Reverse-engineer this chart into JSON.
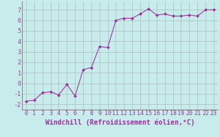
{
  "x": [
    0,
    1,
    2,
    3,
    4,
    5,
    6,
    7,
    8,
    9,
    10,
    11,
    12,
    13,
    14,
    15,
    16,
    17,
    18,
    19,
    20,
    21,
    22,
    23
  ],
  "y": [
    -1.7,
    -1.6,
    -0.9,
    -0.8,
    -1.1,
    -0.1,
    -1.2,
    1.3,
    1.5,
    3.5,
    3.4,
    6.0,
    6.2,
    6.2,
    6.6,
    7.1,
    6.5,
    6.6,
    6.4,
    6.4,
    6.5,
    6.4,
    7.0,
    7.0
  ],
  "xlim": [
    -0.5,
    23.5
  ],
  "ylim": [
    -2.5,
    7.8
  ],
  "yticks": [
    -2,
    -1,
    0,
    1,
    2,
    3,
    4,
    5,
    6,
    7
  ],
  "xticks": [
    0,
    1,
    2,
    3,
    4,
    5,
    6,
    7,
    8,
    9,
    10,
    11,
    12,
    13,
    14,
    15,
    16,
    17,
    18,
    19,
    20,
    21,
    22,
    23
  ],
  "xlabel": "Windchill (Refroidissement éolien,°C)",
  "line_color": "#993399",
  "marker_color": "#993399",
  "bg_color": "#c8ecec",
  "grid_color": "#aabbbb",
  "tick_fontsize": 6,
  "xlabel_fontsize": 7
}
